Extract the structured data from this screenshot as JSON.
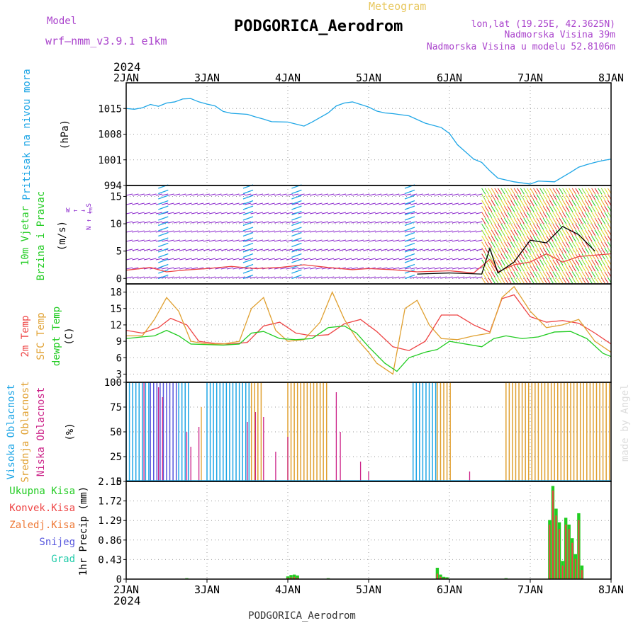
{
  "header": {
    "model_label": "Model",
    "model_name": "wrf—nmm_v3.9.1 e1km",
    "product": "Meteogram",
    "station": "PODGORICA_Aerodrom",
    "lonlat": "lon,lat (19.25E, 42.3625N)",
    "altitude": "Nadmorska Visina 39m",
    "model_altitude": "Nadmorska Visina u modelu 52.8106m",
    "credit": "made by Angel",
    "footer": "PODGORICA_Aerodrom"
  },
  "colors": {
    "pressure": "#1ea6e6",
    "temp2m": "#ee4444",
    "sfc_temp": "#e0a030",
    "dewpoint": "#22cc22",
    "high_cloud": "#1ea6e6",
    "mid_cloud": "#e0a030",
    "low_cloud": "#cc2288",
    "total_cloud": "#5555dd",
    "wind_arrow": "#8822cc",
    "precip_total": "#22cc22",
    "precip_conv": "#ee4444",
    "header_purple": "#aa44cc",
    "product_color": "#e8c860"
  },
  "time_axis": {
    "year": "2024",
    "days": [
      "2JAN",
      "3JAN",
      "4JAN",
      "5JAN",
      "6JAN",
      "7JAN",
      "8JAN"
    ]
  },
  "chart_data": [
    {
      "type": "line",
      "name": "pressure",
      "title": "Pritisak na nivou mora",
      "ylabel": "(hPa)",
      "ylim": [
        994,
        1022
      ],
      "yticks": [
        994,
        1001,
        1008,
        1015
      ],
      "grid": true,
      "series": [
        {
          "name": "Pritisak na nivou mora",
          "color_key": "pressure",
          "x": [
            0,
            0.1,
            0.2,
            0.3,
            0.4,
            0.5,
            0.6,
            0.7,
            0.8,
            0.9,
            1.0,
            1.1,
            1.2,
            1.3,
            1.5,
            1.6,
            1.7,
            1.8,
            2.0,
            2.2,
            2.3,
            2.5,
            2.6,
            2.7,
            2.8,
            3.0,
            3.1,
            3.2,
            3.3,
            3.5,
            3.7,
            3.9,
            4.0,
            4.1,
            4.3,
            4.4,
            4.5,
            4.6,
            4.8,
            5.0,
            5.1,
            5.3,
            5.5,
            5.6,
            5.7,
            5.8,
            5.9,
            6.0
          ],
          "y": [
            1015,
            1014.8,
            1015.2,
            1016.1,
            1015.6,
            1016.5,
            1016.8,
            1017.6,
            1017.7,
            1016.8,
            1016.2,
            1015.7,
            1014.2,
            1013.7,
            1013.4,
            1012.7,
            1012.1,
            1011.4,
            1011.3,
            1010.2,
            1011.3,
            1013.8,
            1015.7,
            1016.5,
            1016.8,
            1015.4,
            1014.3,
            1013.8,
            1013.6,
            1013.0,
            1011.0,
            1009.8,
            1008.2,
            1005.1,
            1001.2,
            1000.3,
            998.0,
            996.0,
            995.0,
            994.4,
            995.2,
            995.0,
            997.6,
            999.0,
            999.7,
            1000.3,
            1000.8,
            1001.2
          ]
        }
      ]
    },
    {
      "type": "line",
      "name": "wind",
      "title": "10m Vjetar",
      "subtitle": "Brzina i Pravac",
      "ylabel": "(m/s)",
      "ylim": [
        -1,
        17
      ],
      "yticks": [
        0,
        5,
        10,
        15
      ],
      "direction_legend": "W ← → E",
      "direction_legend_ns": "N ↑ ↓ S",
      "grid": true,
      "series": [
        {
          "name": "speed_red",
          "color_key": "temp2m",
          "x": [
            0,
            0.3,
            0.5,
            0.7,
            1.0,
            1.3,
            1.6,
            1.9,
            2.2,
            2.5,
            2.8,
            3.0,
            3.3,
            3.6,
            4.0,
            4.3,
            4.5,
            4.6,
            4.8,
            5.0,
            5.2,
            5.4,
            5.6,
            6.0
          ],
          "y": [
            1.5,
            2.0,
            1.2,
            1.5,
            1.8,
            2.2,
            1.8,
            2.0,
            2.5,
            2.0,
            1.6,
            1.8,
            1.6,
            1.2,
            1.4,
            1.0,
            3.5,
            1.2,
            2.5,
            3.0,
            4.5,
            3.0,
            4.0,
            4.5
          ]
        },
        {
          "name": "speed_black",
          "color_key": "black",
          "x": [
            3.6,
            4.0,
            4.4,
            4.5,
            4.6,
            4.8,
            5.0,
            5.2,
            5.4,
            5.6,
            5.8
          ],
          "y": [
            0.8,
            1.0,
            0.8,
            5.5,
            1.0,
            3.0,
            7.0,
            6.5,
            9.5,
            8.0,
            5.0
          ]
        }
      ]
    },
    {
      "type": "line",
      "name": "temperature",
      "title": "2m Temp",
      "subtitle": "SFC Temp",
      "subtitle2": "dewpt Temp",
      "ylabel": "(C)",
      "ylim": [
        1.5,
        19.5
      ],
      "yticks": [
        3,
        6,
        9,
        12,
        15,
        18
      ],
      "grid": true,
      "series": [
        {
          "name": "2m Temp",
          "color_key": "temp2m",
          "x": [
            0,
            0.2,
            0.4,
            0.55,
            0.75,
            0.9,
            1.1,
            1.3,
            1.5,
            1.7,
            1.9,
            2.1,
            2.3,
            2.5,
            2.7,
            2.9,
            3.1,
            3.3,
            3.5,
            3.7,
            3.9,
            4.1,
            4.3,
            4.5,
            4.65,
            4.8,
            5.0,
            5.2,
            5.4,
            5.6,
            5.8,
            6.0
          ],
          "y": [
            11.0,
            10.5,
            11.5,
            13.2,
            12.0,
            9.0,
            8.6,
            8.5,
            8.8,
            11.8,
            12.5,
            10.5,
            10.0,
            10.2,
            12.2,
            13.0,
            10.8,
            8.0,
            7.3,
            9.0,
            13.8,
            13.8,
            12.0,
            10.7,
            16.8,
            17.5,
            13.5,
            12.5,
            12.8,
            12.3,
            10.5,
            8.5
          ]
        },
        {
          "name": "SFC Temp",
          "color_key": "sfc_temp",
          "x": [
            0,
            0.2,
            0.35,
            0.5,
            0.65,
            0.8,
            1.0,
            1.2,
            1.4,
            1.55,
            1.7,
            1.85,
            2.0,
            2.2,
            2.4,
            2.55,
            2.7,
            2.85,
            3.0,
            3.1,
            3.3,
            3.45,
            3.6,
            3.75,
            3.9,
            4.1,
            4.3,
            4.5,
            4.65,
            4.8,
            5.0,
            5.2,
            5.4,
            5.6,
            5.8,
            6.0
          ],
          "y": [
            10.0,
            10.0,
            13.0,
            17.0,
            14.5,
            9.0,
            8.5,
            8.5,
            9.0,
            15.0,
            17.0,
            11.0,
            9.0,
            9.3,
            12.5,
            18.0,
            13.0,
            9.5,
            7.0,
            5.0,
            3.0,
            15.0,
            16.5,
            12.0,
            9.5,
            9.3,
            10.0,
            10.5,
            17.0,
            19.0,
            14.5,
            11.5,
            12.0,
            13.0,
            9.0,
            7.0
          ]
        },
        {
          "name": "dewpt Temp",
          "color_key": "dewpoint",
          "x": [
            0,
            0.2,
            0.35,
            0.5,
            0.65,
            0.8,
            1.0,
            1.2,
            1.4,
            1.55,
            1.7,
            1.9,
            2.1,
            2.3,
            2.5,
            2.7,
            2.85,
            3.0,
            3.2,
            3.35,
            3.5,
            3.7,
            3.85,
            4.0,
            4.2,
            4.4,
            4.55,
            4.7,
            4.9,
            5.1,
            5.3,
            5.5,
            5.7,
            5.9,
            6.0
          ],
          "y": [
            9.5,
            9.8,
            10.0,
            11.0,
            10.0,
            8.5,
            8.4,
            8.3,
            8.5,
            10.5,
            10.8,
            9.5,
            9.3,
            9.5,
            11.5,
            11.8,
            10.5,
            8.0,
            5.0,
            3.5,
            6.0,
            7.0,
            7.5,
            9.0,
            8.5,
            8.0,
            9.5,
            10.0,
            9.5,
            9.8,
            10.7,
            10.8,
            9.5,
            6.8,
            6.2
          ]
        }
      ]
    },
    {
      "type": "bar",
      "name": "clouds",
      "title": "Visoka Oblacnost",
      "subtitle": "Srednja Oblacnost",
      "subtitle2": "Niska Oblacnost",
      "ylabel": "(%)",
      "ylim": [
        0,
        100
      ],
      "yticks": [
        0,
        25,
        50,
        75,
        100
      ],
      "grid": true,
      "segments": [
        {
          "series": "high",
          "color_key": "high_cloud",
          "from": 0.0,
          "to": 0.3,
          "value": 100
        },
        {
          "series": "total",
          "color_key": "total_cloud",
          "from": 0.3,
          "to": 0.65,
          "value": 100
        },
        {
          "series": "high",
          "color_key": "high_cloud",
          "from": 0.65,
          "to": 0.8,
          "value": 100
        },
        {
          "series": "high",
          "color_key": "high_cloud",
          "from": 1.0,
          "to": 1.55,
          "value": 100
        },
        {
          "series": "mid",
          "color_key": "mid_cloud",
          "from": 1.55,
          "to": 1.7,
          "value": 100
        },
        {
          "series": "mid",
          "color_key": "mid_cloud",
          "from": 2.0,
          "to": 2.5,
          "value": 100
        },
        {
          "series": "high",
          "color_key": "high_cloud",
          "from": 3.55,
          "to": 3.85,
          "value": 100
        },
        {
          "series": "mid",
          "color_key": "mid_cloud",
          "from": 3.85,
          "to": 4.05,
          "value": 100
        },
        {
          "series": "mid",
          "color_key": "mid_cloud",
          "from": 4.7,
          "to": 6.0,
          "value": 100
        }
      ],
      "spikes": [
        {
          "x": 0.22,
          "value": 100,
          "series": "low"
        },
        {
          "x": 0.4,
          "value": 95,
          "series": "low"
        },
        {
          "x": 0.45,
          "value": 85,
          "series": "low"
        },
        {
          "x": 0.75,
          "value": 50,
          "series": "low"
        },
        {
          "x": 0.8,
          "value": 35,
          "series": "low"
        },
        {
          "x": 0.9,
          "value": 55,
          "series": "low"
        },
        {
          "x": 0.93,
          "value": 75,
          "series": "mid"
        },
        {
          "x": 1.5,
          "value": 60,
          "series": "low"
        },
        {
          "x": 1.6,
          "value": 70,
          "series": "low"
        },
        {
          "x": 1.7,
          "value": 65,
          "series": "low"
        },
        {
          "x": 1.85,
          "value": 30,
          "series": "low"
        },
        {
          "x": 2.0,
          "value": 45,
          "series": "low"
        },
        {
          "x": 2.6,
          "value": 90,
          "series": "low"
        },
        {
          "x": 2.65,
          "value": 50,
          "series": "low"
        },
        {
          "x": 2.9,
          "value": 20,
          "series": "low"
        },
        {
          "x": 3.0,
          "value": 10,
          "series": "low"
        },
        {
          "x": 4.25,
          "value": 10,
          "series": "low"
        }
      ]
    },
    {
      "type": "bar",
      "name": "precipitation",
      "title": "1hr Precip",
      "ylabel": "(mm)",
      "ylim": [
        0,
        2.15
      ],
      "yticks": [
        0,
        0.43,
        0.86,
        1.29,
        1.72,
        2.15
      ],
      "grid": true,
      "legend": [
        "Ukupna Kisa",
        "Konvek.Kisa",
        "Zaledj.Kisa",
        "Snijeg",
        "Grad"
      ],
      "bars": [
        {
          "x": 0.75,
          "total": 0.02,
          "conv": 0.01
        },
        {
          "x": 2.0,
          "total": 0.06,
          "conv": 0.03
        },
        {
          "x": 2.04,
          "total": 0.09,
          "conv": 0.04
        },
        {
          "x": 2.08,
          "total": 0.1,
          "conv": 0.05
        },
        {
          "x": 2.12,
          "total": 0.08,
          "conv": 0.03
        },
        {
          "x": 2.5,
          "total": 0.02,
          "conv": 0.01
        },
        {
          "x": 3.85,
          "total": 0.25,
          "conv": 0.12
        },
        {
          "x": 3.89,
          "total": 0.1,
          "conv": 0.05
        },
        {
          "x": 3.93,
          "total": 0.05,
          "conv": 0.02
        },
        {
          "x": 3.97,
          "total": 0.04,
          "conv": 0.02
        },
        {
          "x": 4.7,
          "total": 0.02,
          "conv": 0.01
        },
        {
          "x": 5.24,
          "total": 1.3,
          "conv": 1.2
        },
        {
          "x": 5.28,
          "total": 2.05,
          "conv": 1.95
        },
        {
          "x": 5.32,
          "total": 1.55,
          "conv": 1.4
        },
        {
          "x": 5.36,
          "total": 1.25,
          "conv": 1.1
        },
        {
          "x": 5.4,
          "total": 0.4,
          "conv": 0.3
        },
        {
          "x": 5.44,
          "total": 1.35,
          "conv": 1.2
        },
        {
          "x": 5.48,
          "total": 1.2,
          "conv": 1.1
        },
        {
          "x": 5.52,
          "total": 0.9,
          "conv": 0.8
        },
        {
          "x": 5.56,
          "total": 0.55,
          "conv": 0.45
        },
        {
          "x": 5.6,
          "total": 1.45,
          "conv": 1.3
        },
        {
          "x": 5.64,
          "total": 0.3,
          "conv": 0.2
        }
      ]
    }
  ]
}
